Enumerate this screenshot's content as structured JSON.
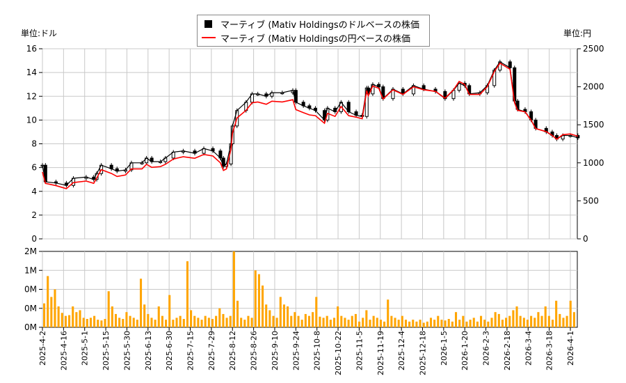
{
  "legend": {
    "usd": "マーティブ (Mativ Holdingsのドルベースの株価",
    "jpy": "マーティブ (Mativ Holdingsの円ベースの株価"
  },
  "left_unit": "単位:ドル",
  "right_unit": "単位:円",
  "chart_data": {
    "type": "line",
    "grid": true,
    "legend_position": "top-center",
    "colors": {
      "usd": "#000000",
      "jpy": "#ff0000",
      "volume": "#ffa500",
      "grid": "#c8c8c8"
    },
    "price_ylim_usd": [
      0,
      16
    ],
    "price_ylim_jpy": [
      0,
      2500
    ],
    "usd_ticks": [
      "0",
      "2",
      "4",
      "6",
      "8",
      "10",
      "12",
      "14",
      "16"
    ],
    "jpy_ticks": [
      "0",
      "500",
      "1000",
      "1500",
      "2000",
      "2500"
    ],
    "volume_ylim": [
      0,
      2000000
    ],
    "volume_ticks": [
      "0M",
      "0M",
      "0M",
      "1M",
      "2M"
    ],
    "x_ticks": [
      "2025-4-2",
      "2025-4-16",
      "2025-5-1",
      "2025-5-15",
      "2025-5-30",
      "2025-6-13",
      "2025-6-30",
      "2025-7-15",
      "2025-7-29",
      "2025-8-12",
      "2025-8-26",
      "2025-9-10",
      "2025-9-24",
      "2025-10-8",
      "2025-10-22",
      "2025-11-5",
      "2025-11-19",
      "2025-12-4",
      "2025-12-18",
      "2026-1-5",
      "2026-1-20",
      "2026-2-3",
      "2026-2-18",
      "2026-3-4",
      "2026-3-18",
      "2026-4-1"
    ],
    "usd_series": [
      [
        "2025-4-2",
        6.2
      ],
      [
        "2025-4-4",
        4.8
      ],
      [
        "2025-4-11",
        4.7
      ],
      [
        "2025-4-18",
        4.5
      ],
      [
        "2025-4-23",
        5.1
      ],
      [
        "2025-5-2",
        5.2
      ],
      [
        "2025-5-7",
        5.0
      ],
      [
        "2025-5-9",
        5.5
      ],
      [
        "2025-5-12",
        6.2
      ],
      [
        "2025-5-19",
        5.9
      ],
      [
        "2025-5-23",
        5.7
      ],
      [
        "2025-5-29",
        5.8
      ],
      [
        "2025-6-2",
        6.4
      ],
      [
        "2025-6-9",
        6.4
      ],
      [
        "2025-6-12",
        6.8
      ],
      [
        "2025-6-16",
        6.5
      ],
      [
        "2025-6-23",
        6.5
      ],
      [
        "2025-6-27",
        6.8
      ],
      [
        "2025-7-3",
        7.3
      ],
      [
        "2025-7-10",
        7.4
      ],
      [
        "2025-7-18",
        7.2
      ],
      [
        "2025-7-24",
        7.6
      ],
      [
        "2025-7-30",
        7.4
      ],
      [
        "2025-8-4",
        6.8
      ],
      [
        "2025-8-6",
        6.1
      ],
      [
        "2025-8-8",
        6.3
      ],
      [
        "2025-8-11",
        8.0
      ],
      [
        "2025-8-12",
        9.5
      ],
      [
        "2025-8-15",
        10.8
      ],
      [
        "2025-8-21",
        11.5
      ],
      [
        "2025-8-25",
        12.2
      ],
      [
        "2025-8-29",
        12.2
      ],
      [
        "2025-9-4",
        12.0
      ],
      [
        "2025-9-8",
        12.3
      ],
      [
        "2025-9-15",
        12.3
      ],
      [
        "2025-9-22",
        12.5
      ],
      [
        "2025-9-24",
        11.5
      ],
      [
        "2025-9-29",
        11.2
      ],
      [
        "2025-10-3",
        11.0
      ],
      [
        "2025-10-7",
        10.8
      ],
      [
        "2025-10-13",
        10.0
      ],
      [
        "2025-10-15",
        11.0
      ],
      [
        "2025-10-20",
        10.7
      ],
      [
        "2025-10-24",
        11.5
      ],
      [
        "2025-10-29",
        10.7
      ],
      [
        "2025-11-3",
        10.4
      ],
      [
        "2025-11-7",
        10.3
      ],
      [
        "2025-11-10",
        12.7
      ],
      [
        "2025-11-11",
        12.2
      ],
      [
        "2025-11-14",
        13.0
      ],
      [
        "2025-11-18",
        12.8
      ],
      [
        "2025-11-21",
        11.8
      ],
      [
        "2025-11-28",
        12.6
      ],
      [
        "2025-12-5",
        12.2
      ],
      [
        "2025-12-12",
        12.9
      ],
      [
        "2025-12-19",
        12.6
      ],
      [
        "2025-12-29",
        12.4
      ],
      [
        "2026-1-6",
        11.8
      ],
      [
        "2026-1-12",
        12.5
      ],
      [
        "2026-1-16",
        13.1
      ],
      [
        "2026-1-20",
        12.9
      ],
      [
        "2026-1-23",
        12.2
      ],
      [
        "2026-1-30",
        12.3
      ],
      [
        "2026-2-4",
        12.9
      ],
      [
        "2026-2-9",
        14.2
      ],
      [
        "2026-2-13",
        14.9
      ],
      [
        "2026-2-20",
        14.4
      ],
      [
        "2026-2-23",
        11.6
      ],
      [
        "2026-2-25",
        10.9
      ],
      [
        "2026-3-2",
        10.7
      ],
      [
        "2026-3-6",
        10.0
      ],
      [
        "2026-3-9",
        9.3
      ],
      [
        "2026-3-16",
        9.0
      ],
      [
        "2026-3-20",
        8.7
      ],
      [
        "2026-3-23",
        8.4
      ],
      [
        "2026-3-27",
        8.7
      ],
      [
        "2026-4-1",
        8.7
      ],
      [
        "2026-4-6",
        8.5
      ]
    ],
    "jpy_series": [
      [
        "2025-4-2",
        880
      ],
      [
        "2025-4-4",
        730
      ],
      [
        "2025-4-11",
        700
      ],
      [
        "2025-4-18",
        660
      ],
      [
        "2025-4-23",
        740
      ],
      [
        "2025-5-2",
        760
      ],
      [
        "2025-5-7",
        730
      ],
      [
        "2025-5-9",
        800
      ],
      [
        "2025-5-12",
        910
      ],
      [
        "2025-5-19",
        860
      ],
      [
        "2025-5-23",
        820
      ],
      [
        "2025-5-29",
        840
      ],
      [
        "2025-6-2",
        920
      ],
      [
        "2025-6-9",
        920
      ],
      [
        "2025-6-12",
        980
      ],
      [
        "2025-6-16",
        940
      ],
      [
        "2025-6-23",
        950
      ],
      [
        "2025-6-27",
        980
      ],
      [
        "2025-7-3",
        1050
      ],
      [
        "2025-7-10",
        1080
      ],
      [
        "2025-7-18",
        1060
      ],
      [
        "2025-7-24",
        1110
      ],
      [
        "2025-7-30",
        1090
      ],
      [
        "2025-8-4",
        1000
      ],
      [
        "2025-8-6",
        900
      ],
      [
        "2025-8-8",
        920
      ],
      [
        "2025-8-11",
        1180
      ],
      [
        "2025-8-12",
        1390
      ],
      [
        "2025-8-15",
        1590
      ],
      [
        "2025-8-21",
        1690
      ],
      [
        "2025-8-25",
        1790
      ],
      [
        "2025-8-29",
        1800
      ],
      [
        "2025-9-4",
        1770
      ],
      [
        "2025-9-8",
        1810
      ],
      [
        "2025-9-15",
        1800
      ],
      [
        "2025-9-22",
        1830
      ],
      [
        "2025-9-24",
        1700
      ],
      [
        "2025-9-29",
        1660
      ],
      [
        "2025-10-3",
        1630
      ],
      [
        "2025-10-7",
        1620
      ],
      [
        "2025-10-13",
        1520
      ],
      [
        "2025-10-15",
        1650
      ],
      [
        "2025-10-20",
        1610
      ],
      [
        "2025-10-24",
        1740
      ],
      [
        "2025-10-29",
        1620
      ],
      [
        "2025-11-3",
        1600
      ],
      [
        "2025-11-7",
        1580
      ],
      [
        "2025-11-10",
        1950
      ],
      [
        "2025-11-11",
        1880
      ],
      [
        "2025-11-14",
        2010
      ],
      [
        "2025-11-18",
        1980
      ],
      [
        "2025-11-21",
        1840
      ],
      [
        "2025-11-28",
        1960
      ],
      [
        "2025-12-5",
        1900
      ],
      [
        "2025-12-12",
        2000
      ],
      [
        "2025-12-19",
        1960
      ],
      [
        "2025-12-29",
        1940
      ],
      [
        "2026-1-6",
        1850
      ],
      [
        "2026-1-12",
        1960
      ],
      [
        "2026-1-16",
        2070
      ],
      [
        "2026-1-20",
        2030
      ],
      [
        "2026-1-23",
        1900
      ],
      [
        "2026-1-30",
        1900
      ],
      [
        "2026-2-4",
        2000
      ],
      [
        "2026-2-9",
        2200
      ],
      [
        "2026-2-13",
        2310
      ],
      [
        "2026-2-20",
        2230
      ],
      [
        "2026-2-23",
        1790
      ],
      [
        "2026-2-25",
        1690
      ],
      [
        "2026-3-2",
        1670
      ],
      [
        "2026-3-6",
        1560
      ],
      [
        "2026-3-9",
        1450
      ],
      [
        "2026-3-16",
        1410
      ],
      [
        "2026-3-20",
        1360
      ],
      [
        "2026-3-23",
        1310
      ],
      [
        "2026-3-27",
        1370
      ],
      [
        "2026-4-1",
        1380
      ],
      [
        "2026-4-6",
        1350
      ]
    ],
    "volume_values": [
      0.63,
      1.35,
      0.8,
      1.0,
      0.55,
      0.38,
      0.3,
      0.32,
      0.55,
      0.4,
      0.45,
      0.25,
      0.22,
      0.25,
      0.3,
      0.2,
      0.18,
      0.22,
      0.95,
      0.55,
      0.35,
      0.25,
      0.22,
      0.4,
      0.3,
      0.25,
      0.2,
      1.28,
      0.6,
      0.35,
      0.25,
      0.2,
      0.55,
      0.3,
      0.2,
      0.85,
      0.2,
      0.25,
      0.3,
      0.22,
      1.74,
      0.45,
      0.3,
      0.25,
      0.2,
      0.3,
      0.25,
      0.22,
      0.3,
      0.5,
      0.35,
      0.25,
      0.3,
      2.0,
      0.7,
      0.25,
      0.2,
      0.3,
      0.25,
      1.5,
      1.4,
      1.1,
      0.6,
      0.45,
      0.3,
      0.25,
      0.8,
      0.6,
      0.55,
      0.3,
      0.4,
      0.3,
      0.2,
      0.35,
      0.3,
      0.4,
      0.8,
      0.28,
      0.25,
      0.3,
      0.2,
      0.25,
      0.55,
      0.3,
      0.25,
      0.2,
      0.3,
      0.35,
      0.15,
      0.25,
      0.45,
      0.2,
      0.3,
      0.25,
      0.2,
      0.15,
      0.73,
      0.3,
      0.25,
      0.2,
      0.3,
      0.2,
      0.15,
      0.2,
      0.15,
      0.2,
      0.12,
      0.15,
      0.25,
      0.2,
      0.3,
      0.2,
      0.18,
      0.22,
      0.15,
      0.4,
      0.2,
      0.3,
      0.15,
      0.2,
      0.25,
      0.15,
      0.3,
      0.2,
      0.15,
      0.25,
      0.4,
      0.35,
      0.2,
      0.25,
      0.3,
      0.45,
      0.55,
      0.3,
      0.25,
      0.2,
      0.3,
      0.25,
      0.4,
      0.3,
      0.55,
      0.3,
      0.2,
      0.7,
      0.35,
      0.25,
      0.3,
      0.7,
      0.4
    ]
  }
}
